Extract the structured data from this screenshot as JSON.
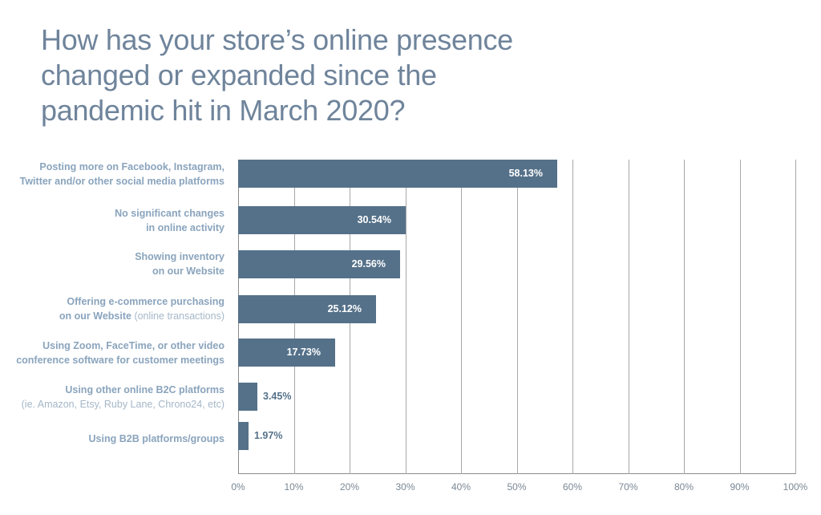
{
  "title": "How has your store’s online presence changed or expanded since the pandemic hit in March 2020?",
  "chart_data": {
    "type": "bar",
    "orientation": "horizontal",
    "title": "How has your store’s online presence changed or expanded since the pandemic hit in March 2020?",
    "xlabel": "",
    "ylabel": "",
    "xlim": [
      0,
      100
    ],
    "grid": true,
    "categories": [
      "Posting more on Facebook, Instagram, Twitter and/or other social media platforms",
      "No significant changes in online activity",
      "Showing inventory on our Website",
      "Offering e-commerce purchasing on our Website (online transactions)",
      "Using Zoom, FaceTime, or other video conference software for customer meetings",
      "Using other online B2C platforms (ie. Amazon, Etsy, Ruby Lane, Chrono24, etc)",
      "Using B2B platforms/groups"
    ],
    "values": [
      58.13,
      30.54,
      29.56,
      25.12,
      17.73,
      3.45,
      1.97
    ],
    "value_labels": [
      "58.13%",
      "30.54%",
      "29.56%",
      "25.12%",
      "17.73%",
      "3.45%",
      "1.97%"
    ],
    "x_ticks": [
      "0%",
      "10%",
      "20%",
      "30%",
      "40%",
      "50%",
      "60%",
      "70%",
      "80%",
      "90%",
      "100%"
    ],
    "bar_color": "#557189"
  },
  "labels": [
    {
      "line1": "Posting more on Facebook, Instagram,",
      "line2": "Twitter and/or other social media platforms",
      "sub": ""
    },
    {
      "line1": "No significant changes",
      "line2": "in online activity",
      "sub": ""
    },
    {
      "line1": "Showing inventory",
      "line2": "on our Website",
      "sub": ""
    },
    {
      "line1": "Offering e-commerce purchasing",
      "line2": "on our Website",
      "sub": " (online transactions)"
    },
    {
      "line1": "Using Zoom, FaceTime, or other video",
      "line2": "conference software for customer meetings",
      "sub": ""
    },
    {
      "line1": "Using other online B2C platforms",
      "line2": "",
      "sub": "(ie. Amazon, Etsy, Ruby Lane, Chrono24, etc)"
    },
    {
      "line1": "Using B2B platforms/groups",
      "line2": "",
      "sub": ""
    }
  ]
}
